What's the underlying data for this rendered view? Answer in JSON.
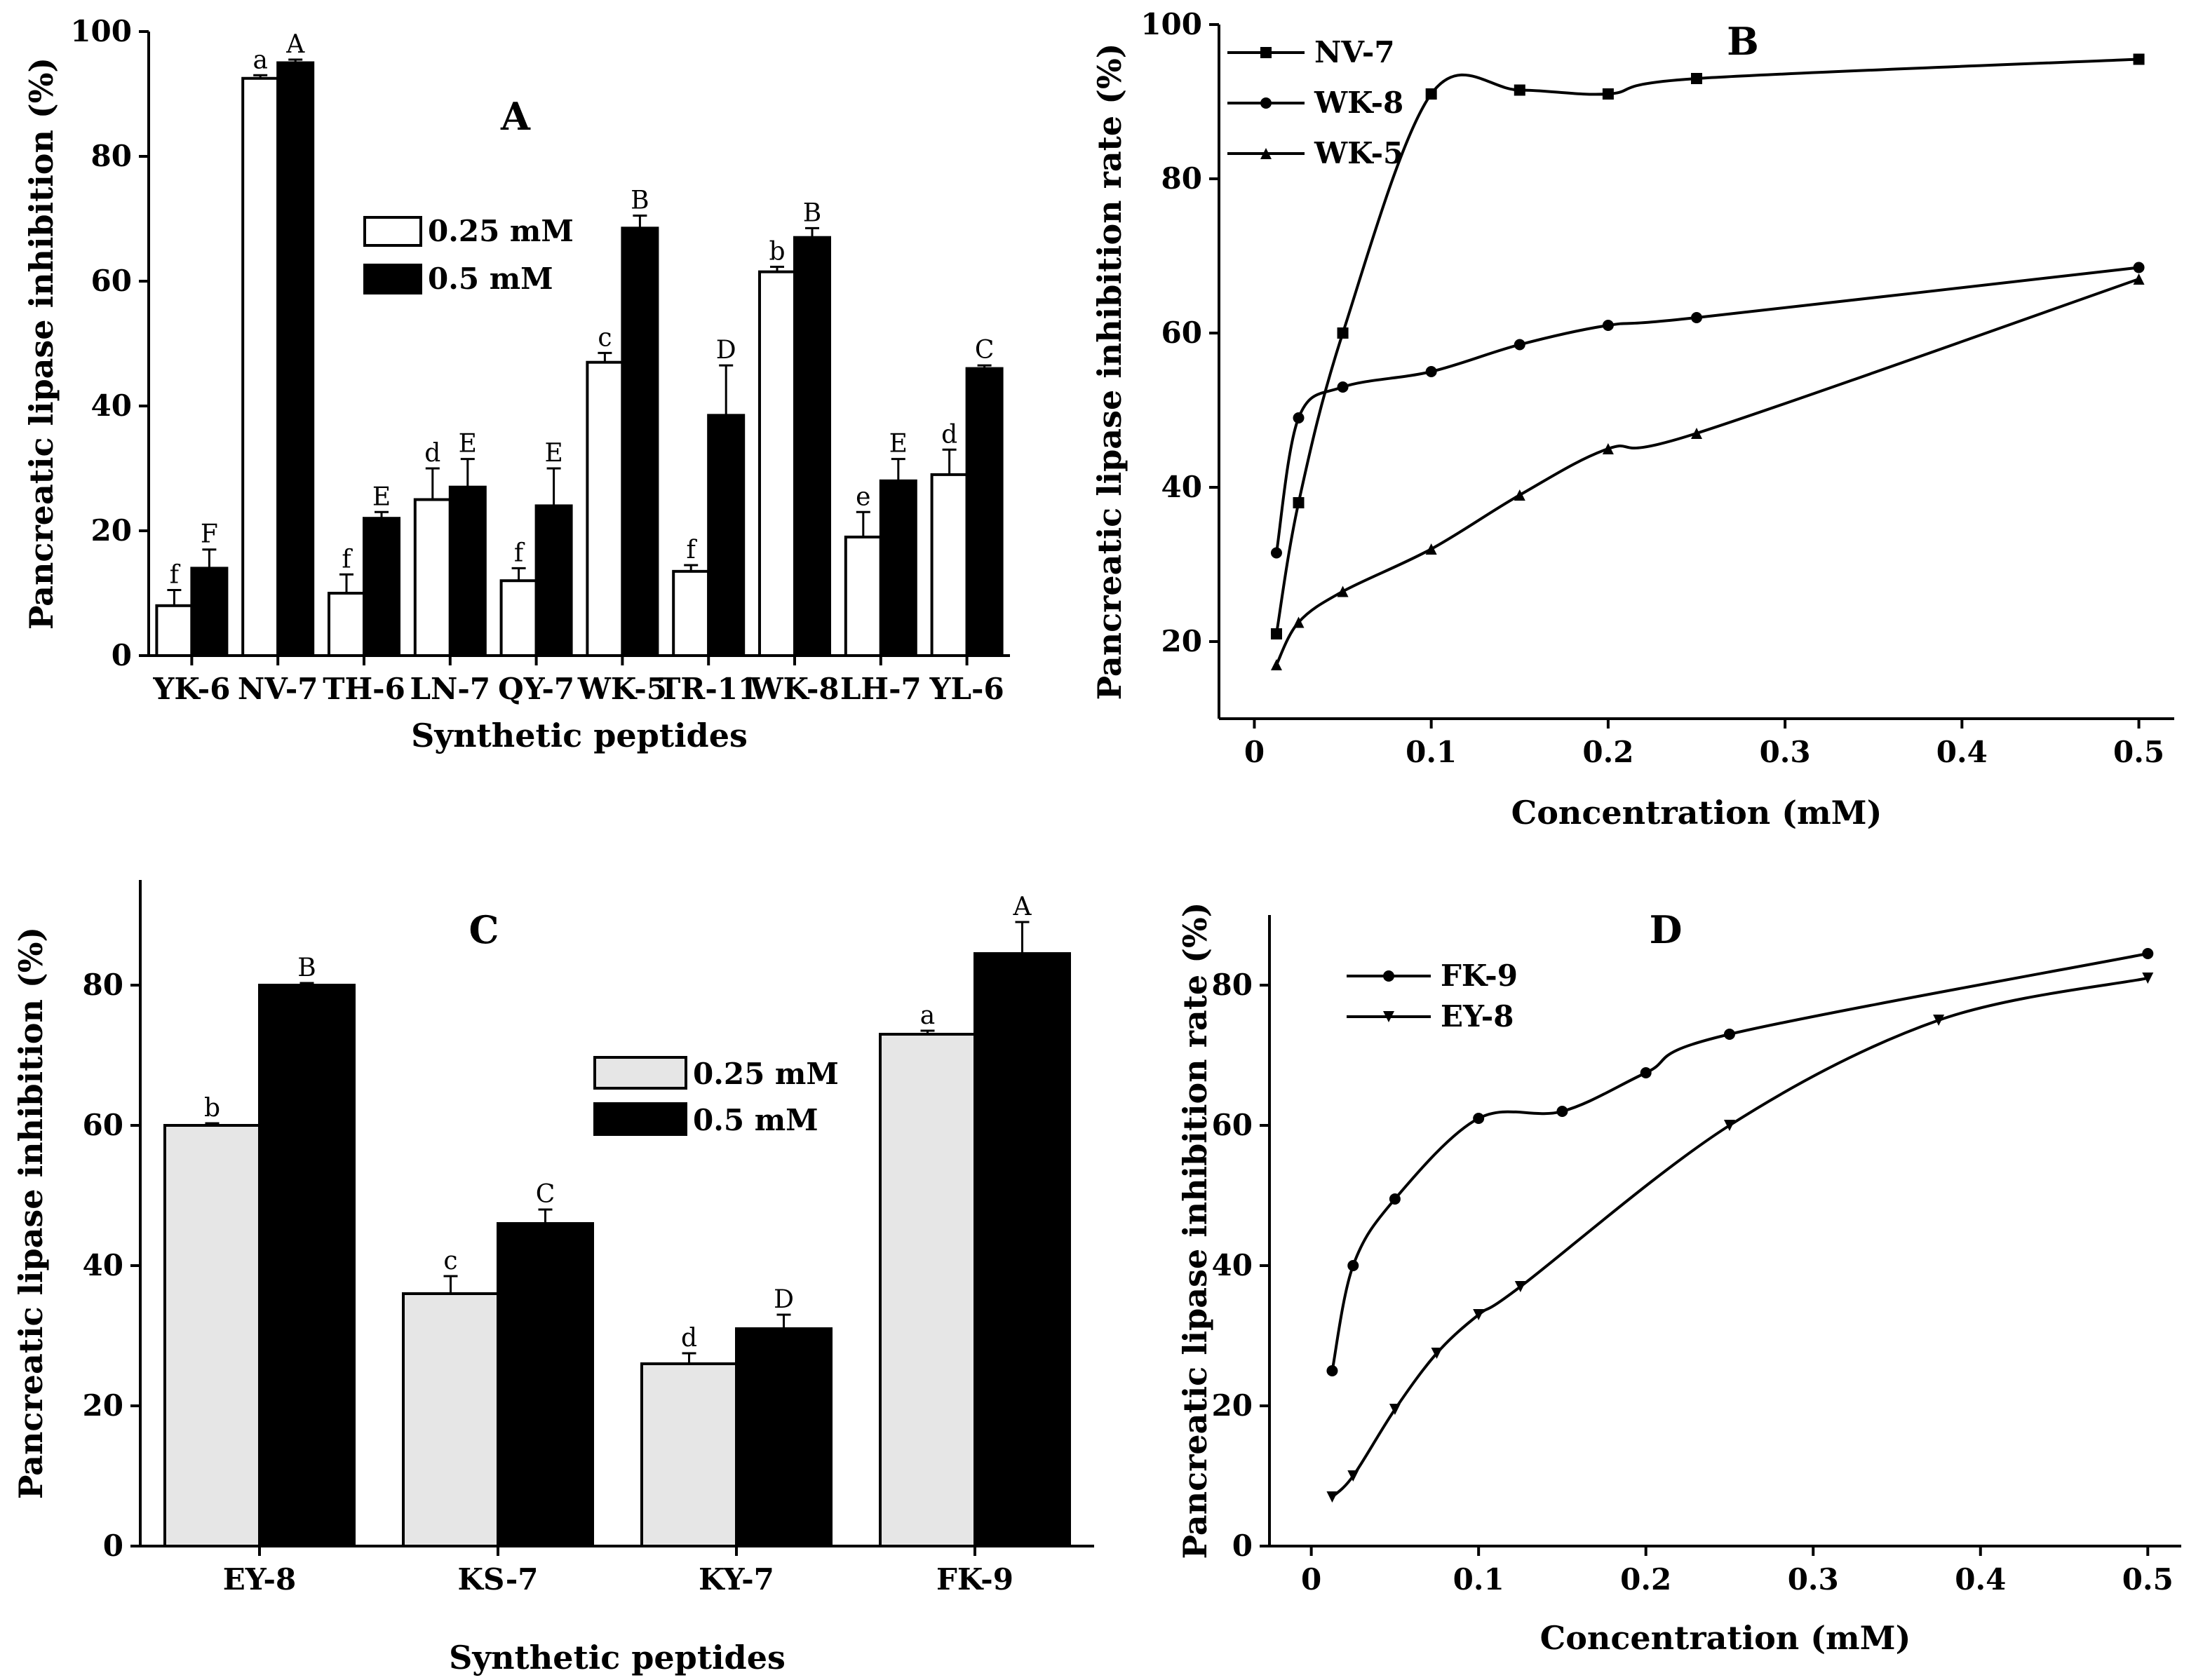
{
  "chart_data": [
    {
      "id": "A",
      "type": "bar",
      "panel_label": "A",
      "xlabel": "Synthetic peptides",
      "ylabel": "Pancreatic lipase inhibition (%)",
      "ylim": [
        0,
        100
      ],
      "yticks": [
        0,
        20,
        40,
        60,
        80,
        100
      ],
      "categories": [
        "YK-6",
        "NV-7",
        "TH-6",
        "LN-7",
        "QY-7",
        "WK-5",
        "TR-11",
        "WK-8",
        "LH-7",
        "YL-6"
      ],
      "series": [
        {
          "name": "0.25 mM",
          "color": "#ffffff",
          "values": [
            8,
            92.5,
            10,
            25,
            12,
            47,
            13.5,
            61.5,
            19,
            29
          ],
          "errors": [
            2.5,
            0.5,
            3,
            5,
            2,
            1.5,
            1,
            0.8,
            4,
            4
          ],
          "labels": [
            "f",
            "a",
            "f",
            "d",
            "f",
            "c",
            "f",
            "b",
            "e",
            "d"
          ]
        },
        {
          "name": "0.5 mM",
          "color": "#000000",
          "values": [
            14,
            95,
            22,
            27,
            24,
            68.5,
            38.5,
            67,
            28,
            46
          ],
          "errors": [
            3,
            0.5,
            1,
            4.5,
            6,
            2,
            8,
            1.5,
            3.5,
            0.5
          ],
          "labels": [
            "F",
            "A",
            "E",
            "E",
            "E",
            "B",
            "D",
            "B",
            "E",
            "C"
          ]
        }
      ],
      "legend": "upper-middle"
    },
    {
      "id": "B",
      "type": "line",
      "panel_label": "B",
      "xlabel": "Concentration (mM)",
      "ylabel": "Pancreatic lipase inhibition rate (%)",
      "xlim": [
        -0.02,
        0.52
      ],
      "ylim": [
        10,
        100
      ],
      "xticks": [
        "0",
        "0.1",
        "0.2",
        "0.3",
        "0.4",
        "0.5"
      ],
      "yticks": [
        "20",
        "40",
        "60",
        "80",
        "100"
      ],
      "series": [
        {
          "name": "NV-7",
          "marker": "square",
          "x": [
            0.0125,
            0.025,
            0.05,
            0.1,
            0.15,
            0.2,
            0.25,
            0.5
          ],
          "y": [
            21,
            38,
            60,
            91,
            91.5,
            91,
            93,
            95.5
          ]
        },
        {
          "name": "WK-8",
          "marker": "circle",
          "x": [
            0.0125,
            0.025,
            0.05,
            0.1,
            0.15,
            0.2,
            0.25,
            0.5
          ],
          "y": [
            31.5,
            49,
            53,
            55,
            58.5,
            61,
            62,
            68.5
          ]
        },
        {
          "name": "WK-5",
          "marker": "triangle",
          "x": [
            0.0125,
            0.025,
            0.05,
            0.1,
            0.15,
            0.2,
            0.25,
            0.5
          ],
          "y": [
            17,
            22.5,
            26.5,
            32,
            39,
            45,
            47,
            67
          ]
        }
      ],
      "legend": "top-left"
    },
    {
      "id": "C",
      "type": "bar",
      "panel_label": "C",
      "xlabel": "Synthetic peptides",
      "ylabel": "Pancreatic lipase inhibition (%)",
      "ylim": [
        0,
        95
      ],
      "yticks": [
        0,
        20,
        40,
        60,
        80
      ],
      "categories": [
        "EY-8",
        "KS-7",
        "KY-7",
        "FK-9"
      ],
      "series": [
        {
          "name": "0.25 mM",
          "color": "#e6e6e6",
          "values": [
            60,
            36,
            26,
            73
          ],
          "errors": [
            0.3,
            2.5,
            1.5,
            0.5
          ],
          "labels": [
            "b",
            "c",
            "d",
            "a"
          ]
        },
        {
          "name": "0.5 mM",
          "color": "#000000",
          "values": [
            80,
            46,
            31,
            84.5
          ],
          "errors": [
            0.3,
            2,
            2,
            4.5
          ],
          "labels": [
            "B",
            "C",
            "D",
            "A"
          ]
        }
      ],
      "legend": "upper-middle"
    },
    {
      "id": "D",
      "type": "line",
      "panel_label": "D",
      "xlabel": "Concentration (mM)",
      "ylabel": "Pancreatic lipase inhibition rate (%)",
      "xlim": [
        -0.025,
        0.52
      ],
      "ylim": [
        0,
        90
      ],
      "xticks": [
        "0",
        "0.1",
        "0.2",
        "0.3",
        "0.4",
        "0.5"
      ],
      "yticks": [
        "0",
        "20",
        "40",
        "60",
        "80"
      ],
      "series": [
        {
          "name": "FK-9",
          "marker": "circle",
          "x": [
            0.0125,
            0.025,
            0.05,
            0.1,
            0.15,
            0.2,
            0.25,
            0.5
          ],
          "y": [
            25,
            40,
            49.5,
            61,
            62,
            67.5,
            73,
            84.5
          ]
        },
        {
          "name": "EY-8",
          "marker": "triangle-down",
          "x": [
            0.0125,
            0.025,
            0.05,
            0.075,
            0.1,
            0.125,
            0.25,
            0.375,
            0.5
          ],
          "y": [
            7,
            10,
            19.5,
            27.5,
            33,
            37,
            60,
            75,
            81
          ]
        }
      ],
      "legend": "top-left"
    }
  ]
}
